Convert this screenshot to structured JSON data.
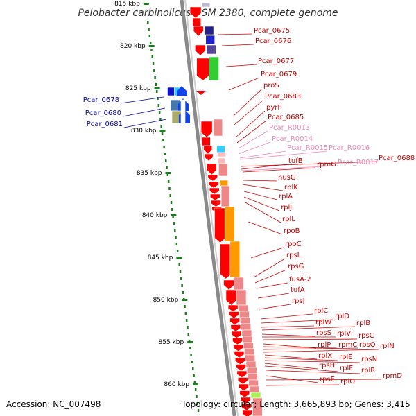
{
  "title": "Pelobacter carbinolicus DSM 2380, complete genome",
  "accession_text": "Accession: NC_007498",
  "topology_text": "Topology: circular; Length: 3,665,893 bp; Genes: 3,415",
  "colors": {
    "backbone": "#888888",
    "tick": "#1a7f1a",
    "red_label": "#cc0000",
    "pink_label": "#ee88bb",
    "blue_label": "#0000aa",
    "gene_red": "#ff0000",
    "gene_salmon": "#ee8888",
    "gene_orange": "#ff9900",
    "gene_green": "#33cc33",
    "gene_navy": "#222288",
    "gene_cyan": "#33ccff",
    "gene_olive": "#aaaa66"
  },
  "ticks": [
    "815 kbp",
    "820 kbp",
    "825 kbp",
    "830 kbp",
    "835 kbp",
    "840 kbp",
    "845 kbp",
    "850 kbp",
    "855 kbp",
    "860 kbp"
  ],
  "labels": [
    {
      "text": "Pcar_0675",
      "color": "red"
    },
    {
      "text": "Pcar_0676",
      "color": "red"
    },
    {
      "text": "Pcar_0677",
      "color": "red"
    },
    {
      "text": "Pcar_0679",
      "color": "red"
    },
    {
      "text": "proS",
      "color": "red"
    },
    {
      "text": "Pcar_0683",
      "color": "red"
    },
    {
      "text": "pyrF",
      "color": "red"
    },
    {
      "text": "Pcar_0685",
      "color": "red"
    },
    {
      "text": "Pcar_R0013",
      "color": "pink"
    },
    {
      "text": "Pcar_R0014",
      "color": "pink"
    },
    {
      "text": "Pcar_R0015",
      "color": "pink"
    },
    {
      "text": "Pcar_R0016",
      "color": "pink"
    },
    {
      "text": "Pcar_0688",
      "color": "red"
    },
    {
      "text": "tufB",
      "color": "red"
    },
    {
      "text": "Pcar_R0017",
      "color": "pink"
    },
    {
      "text": "rpmG",
      "color": "red"
    },
    {
      "text": "nusG",
      "color": "red"
    },
    {
      "text": "rplK",
      "color": "red"
    },
    {
      "text": "rplA",
      "color": "red"
    },
    {
      "text": "rplJ",
      "color": "red"
    },
    {
      "text": "rplL",
      "color": "red"
    },
    {
      "text": "rpoB",
      "color": "red"
    },
    {
      "text": "rpoC",
      "color": "red"
    },
    {
      "text": "rpsL",
      "color": "red"
    },
    {
      "text": "rpsG",
      "color": "red"
    },
    {
      "text": "fusA-2",
      "color": "red"
    },
    {
      "text": "tufA",
      "color": "red"
    },
    {
      "text": "rpsJ",
      "color": "red"
    },
    {
      "text": "rplC",
      "color": "red"
    },
    {
      "text": "rplD",
      "color": "red"
    },
    {
      "text": "rplW",
      "color": "red"
    },
    {
      "text": "rplB",
      "color": "red"
    },
    {
      "text": "rpsS",
      "color": "red"
    },
    {
      "text": "rplV",
      "color": "red"
    },
    {
      "text": "rpsC",
      "color": "red"
    },
    {
      "text": "rplP",
      "color": "red"
    },
    {
      "text": "rpmC",
      "color": "red"
    },
    {
      "text": "rpsQ",
      "color": "red"
    },
    {
      "text": "rplN",
      "color": "red"
    },
    {
      "text": "rplX",
      "color": "red"
    },
    {
      "text": "rplE",
      "color": "red"
    },
    {
      "text": "rpsN",
      "color": "red"
    },
    {
      "text": "rpsH",
      "color": "red"
    },
    {
      "text": "rplF",
      "color": "red"
    },
    {
      "text": "rplR",
      "color": "red"
    },
    {
      "text": "rpsE",
      "color": "red"
    },
    {
      "text": "rpmD",
      "color": "red"
    },
    {
      "text": "rplO",
      "color": "red"
    },
    {
      "text": "Pcar_0678",
      "color": "blue"
    },
    {
      "text": "Pcar_0680",
      "color": "blue"
    },
    {
      "text": "Pcar_0681",
      "color": "blue"
    }
  ]
}
